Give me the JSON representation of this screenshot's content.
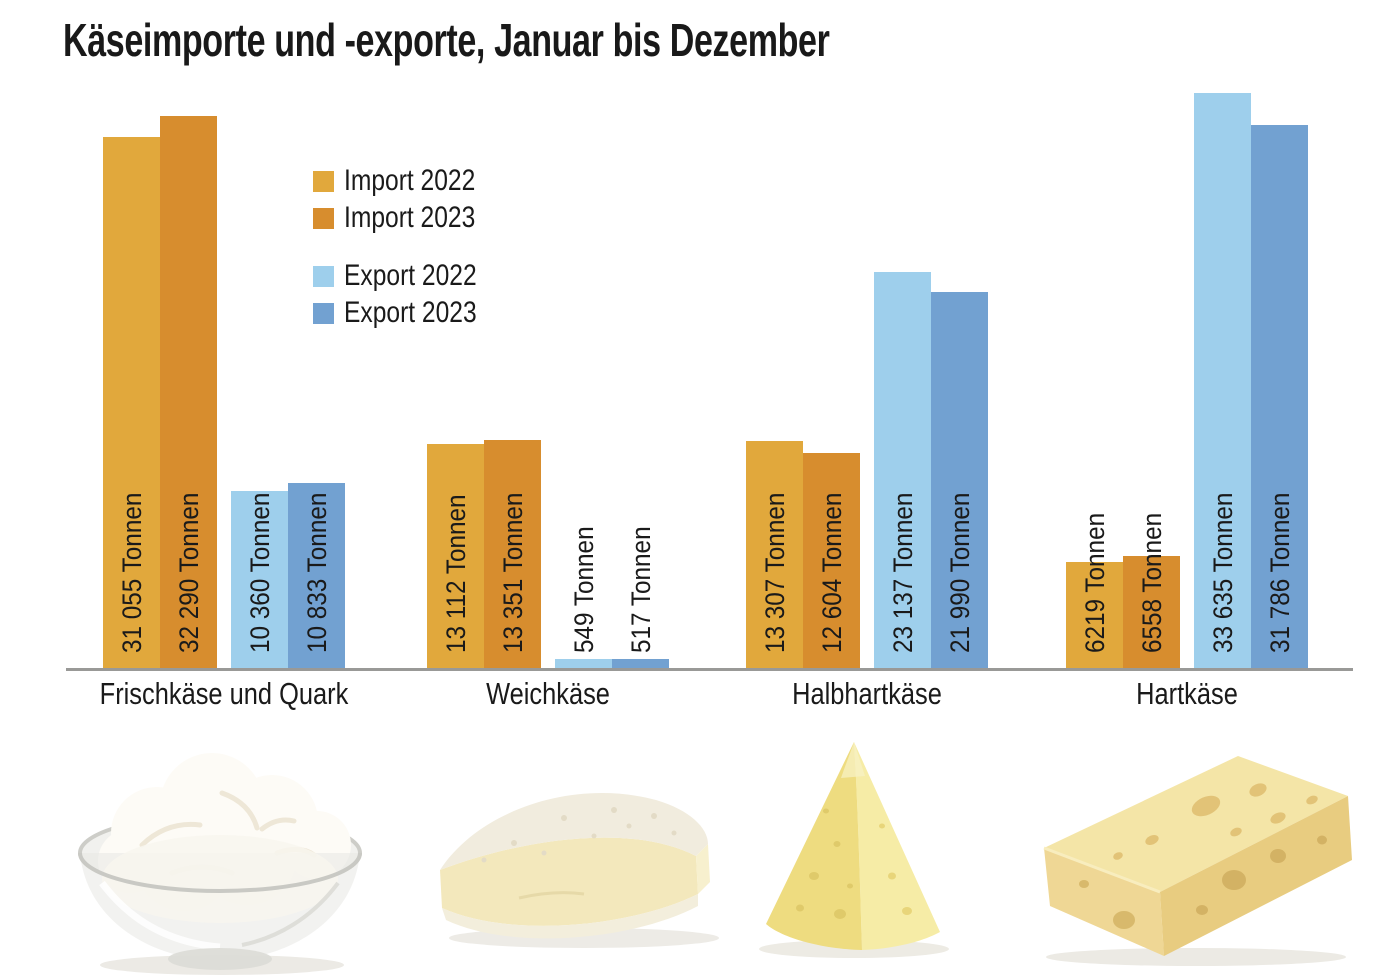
{
  "title": "Käseimporte und -exporte, Januar bis Dezember",
  "chart_data": {
    "type": "bar",
    "title": "Käseimporte und -exporte, Januar bis Dezember",
    "unit": "Tonnen",
    "categories": [
      "Frischkäse und Quark",
      "Weichkäse",
      "Halbhartkäse",
      "Hartkäse"
    ],
    "series": [
      {
        "name": "Import 2022",
        "color": "#E1A83C",
        "values": [
          31055,
          13112,
          13307,
          6219
        ],
        "labels": [
          "31 055 Tonnen",
          "13 112 Tonnen",
          "13 307 Tonnen",
          "6219 Tonnen"
        ]
      },
      {
        "name": "Import 2023",
        "color": "#D78D2E",
        "values": [
          32290,
          13351,
          12604,
          6558
        ],
        "labels": [
          "32 290 Tonnen",
          "13 351 Tonnen",
          "12 604 Tonnen",
          "6558 Tonnen"
        ]
      },
      {
        "name": "Export 2022",
        "color": "#9ECFEC",
        "values": [
          10360,
          549,
          23137,
          33635
        ],
        "labels": [
          "10 360 Tonnen",
          "549 Tonnen",
          "23 137 Tonnen",
          "33 635 Tonnen"
        ]
      },
      {
        "name": "Export 2023",
        "color": "#72A1D1",
        "values": [
          10833,
          517,
          21990,
          31786
        ],
        "labels": [
          "10 833 Tonnen",
          "517 Tonnen",
          "21 990 Tonnen",
          "31 786 Tonnen"
        ]
      }
    ],
    "ylim": [
      0,
      34000
    ],
    "grid": false,
    "legend_position": "upper-left-inside",
    "value_labels_rotated": true
  },
  "footer": {
    "images": [
      {
        "name": "fresh-cheese-and-quark-photo",
        "depicts": "glass bowl with white quark"
      },
      {
        "name": "soft-cheese-photo",
        "depicts": "brie wedge with white rind"
      },
      {
        "name": "semi-hard-cheese-photo",
        "depicts": "yellow semi-hard cheese wedge"
      },
      {
        "name": "hard-cheese-photo",
        "depicts": "hard cheese block with holes"
      }
    ]
  }
}
